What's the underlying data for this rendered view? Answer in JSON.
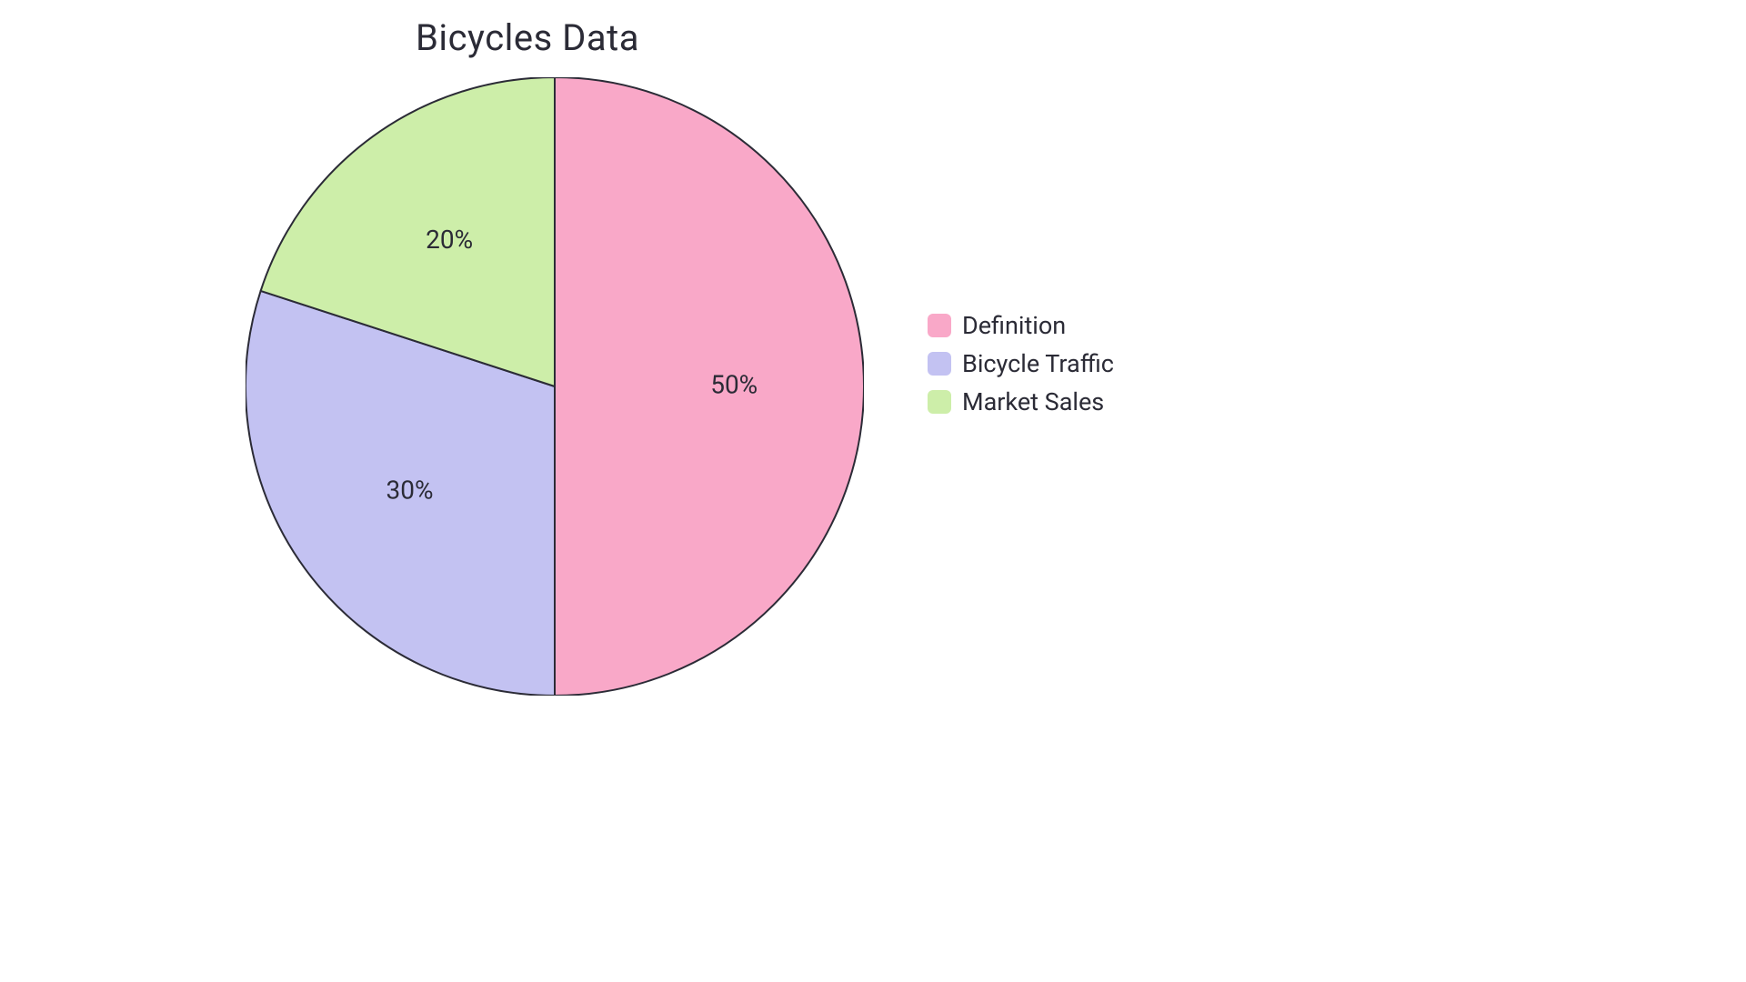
{
  "chart": {
    "type": "pie",
    "title": "Bicycles Data",
    "title_fontsize": 40,
    "title_color": "#2b2b36",
    "background_color": "#ffffff",
    "radius": 340,
    "stroke_color": "#2b2b36",
    "stroke_width": 2,
    "label_fontsize": 28,
    "label_color": "#2b2b36",
    "legend_fontsize": 27,
    "legend_swatch_radius": 6,
    "slices": [
      {
        "label": "Definition",
        "value": 50,
        "percent_label": "50%",
        "color": "#f9a8c8"
      },
      {
        "label": "Bicycle Traffic",
        "value": 30,
        "percent_label": "30%",
        "color": "#c3c2f2"
      },
      {
        "label": "Market Sales",
        "value": 20,
        "percent_label": "20%",
        "color": "#cdeea9"
      }
    ]
  }
}
